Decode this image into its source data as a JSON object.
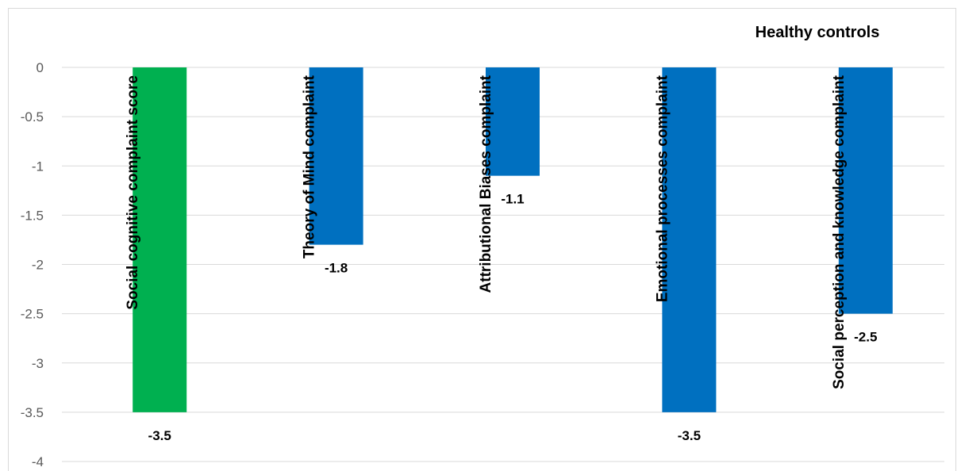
{
  "chart_data": {
    "type": "bar",
    "title": "Healthy controls",
    "legend": "top-right",
    "categories": [
      "Social cognitive complaint score",
      "Theory of Mind complaint",
      "Attributional Biases complaint",
      "Emotional processes complaint",
      "Social perception and knowledge complaint"
    ],
    "values": [
      -3.5,
      -1.8,
      -1.1,
      -3.5,
      -2.5
    ],
    "data_labels": [
      "-3.5",
      "-1.8",
      "-1.1",
      "-3.5",
      "-2.5"
    ],
    "bar_colors": [
      "#00B050",
      "#0070C0",
      "#0070C0",
      "#0070C0",
      "#0070C0"
    ],
    "ylim": [
      -4,
      0
    ],
    "yticks": [
      "0",
      "-0.5",
      "-1",
      "-1.5",
      "-2",
      "-2.5",
      "-3",
      "-3.5",
      "-4"
    ],
    "ytick_values": [
      0,
      -0.5,
      -1,
      -1.5,
      -2,
      -2.5,
      -3,
      -3.5,
      -4
    ],
    "grid": true,
    "colors": {
      "grid": "#D9D9D9",
      "border": "#D9D9D9"
    }
  }
}
